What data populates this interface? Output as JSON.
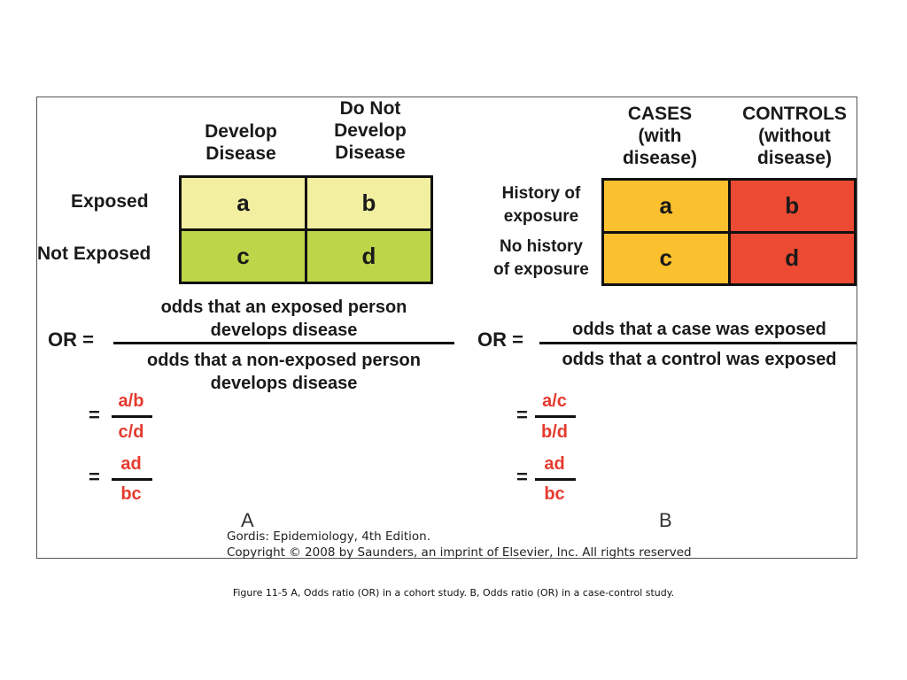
{
  "panel_a": {
    "col_headers": [
      "Develop\nDisease",
      "Do Not\nDevelop\nDisease"
    ],
    "row_labels": [
      "Exposed",
      "Not Exposed"
    ],
    "cells": [
      "a",
      "b",
      "c",
      "d"
    ],
    "colors": {
      "top": "#f2f0a0",
      "bottom": "#bcd549"
    },
    "or_label": "OR =",
    "numerator": "odds that an exposed person\ndevelops disease",
    "denominator": "odds that a non-exposed person\ndevelops disease",
    "step1": {
      "eq": "=",
      "num": "a/b",
      "den": "c/d"
    },
    "step2": {
      "eq": "=",
      "num": "ad",
      "den": "bc"
    },
    "letter": "A"
  },
  "panel_b": {
    "col_headers": [
      "CASES\n(with\ndisease)",
      "CONTROLS\n(without\ndisease)"
    ],
    "row_labels": [
      "History of\nexposure",
      "No history\nof exposure"
    ],
    "cells": [
      "a",
      "b",
      "c",
      "d"
    ],
    "colors": {
      "left": "#fbc02d",
      "right": "#ec4a32"
    },
    "or_label": "OR =",
    "numerator": "odds that a case was exposed",
    "denominator": "odds that a control was exposed",
    "step1": {
      "eq": "=",
      "num": "a/c",
      "den": "b/d"
    },
    "step2": {
      "eq": "=",
      "num": "ad",
      "den": "bc"
    },
    "letter": "B"
  },
  "credit": {
    "line1": "Gordis: Epidemiology, 4th Edition.",
    "line2": "Copyright © 2008 by Saunders, an imprint of Elsevier, Inc. All rights reserved"
  },
  "caption": "Figure 11-5 A, Odds ratio (OR) in a cohort study. B, Odds ratio (OR) in a case-control study."
}
